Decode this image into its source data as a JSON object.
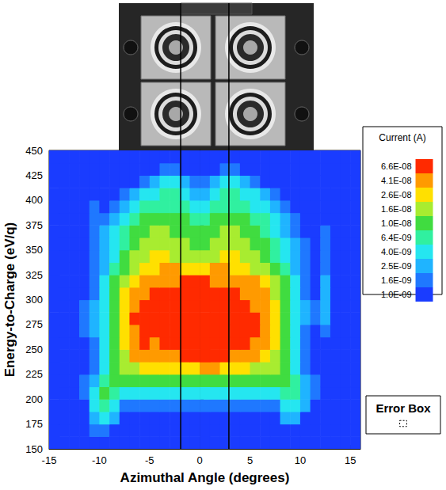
{
  "chart_data": {
    "type": "heatmap",
    "xlabel": "Azimuthal Angle (degrees)",
    "ylabel": "Energy-to-Charge (eV/q)",
    "xlim": [
      -15,
      16
    ],
    "xticks": [
      -15,
      -10,
      -5,
      0,
      5,
      10,
      15
    ],
    "ylim": [
      150,
      450
    ],
    "yticks": [
      150,
      175,
      200,
      225,
      250,
      275,
      300,
      325,
      350,
      375,
      400,
      425,
      450
    ],
    "grid": false,
    "x_bins": [
      -15,
      -14,
      -13,
      -12,
      -11,
      -10,
      -9,
      -8,
      -7,
      -6,
      -5,
      -4,
      -3,
      -2,
      -1,
      0,
      1,
      2,
      3,
      4,
      5,
      6,
      7,
      8,
      9,
      10,
      11,
      12,
      13,
      14,
      15,
      16
    ],
    "y_bins": [
      150,
      162.5,
      175,
      187.5,
      200,
      212.5,
      225,
      237.5,
      250,
      262.5,
      275,
      287.5,
      300,
      312.5,
      325,
      337.5,
      350,
      362.5,
      375,
      387.5,
      400,
      412.5,
      425,
      437.5,
      450
    ],
    "cells": [
      [
        1.2e-09,
        1.2e-09,
        1.2e-09,
        1.2e-09,
        1.2e-09,
        1.2e-09,
        1.2e-09,
        1.2e-09,
        1.2e-09,
        1.2e-09,
        1.2e-09,
        1.2e-09,
        1.2e-09,
        1.2e-09,
        1.2e-09,
        1.2e-09,
        1.2e-09,
        1.2e-09,
        1.2e-09,
        1.2e-09,
        1.2e-09,
        1.2e-09,
        1.2e-09,
        1.2e-09,
        1.2e-09,
        1.2e-09,
        1.2e-09,
        1.2e-09,
        1.2e-09,
        1.2e-09,
        1.2e-09
      ],
      [
        1.2e-09,
        1.2e-09,
        1.2e-09,
        1.2e-09,
        2e-09,
        2e-09,
        1.2e-09,
        1.2e-09,
        1.2e-09,
        1.2e-09,
        1.2e-09,
        1.2e-09,
        1.2e-09,
        1.2e-09,
        1.2e-09,
        1.2e-09,
        1.2e-09,
        1.2e-09,
        1.2e-09,
        1.2e-09,
        1.2e-09,
        1.2e-09,
        1.2e-09,
        1.2e-09,
        1.2e-09,
        1.2e-09,
        1.2e-09,
        1.2e-09,
        1.2e-09,
        1.2e-09,
        1.2e-09
      ],
      [
        1.2e-09,
        1.2e-09,
        1.2e-09,
        1.2e-09,
        3e-09,
        5e-09,
        3e-09,
        1.2e-09,
        1.2e-09,
        1.2e-09,
        1.2e-09,
        1.2e-09,
        1.2e-09,
        1.2e-09,
        1.2e-09,
        1.2e-09,
        1.2e-09,
        1.2e-09,
        1.2e-09,
        1.2e-09,
        1.2e-09,
        1.2e-09,
        1.2e-09,
        3e-09,
        3e-09,
        1.2e-09,
        1.2e-09,
        1.2e-09,
        1.2e-09,
        1.2e-09,
        1.2e-09
      ],
      [
        1.2e-09,
        1.2e-09,
        1.2e-09,
        1.2e-09,
        5e-09,
        8e-09,
        5e-09,
        2e-09,
        2e-09,
        2e-09,
        2e-09,
        2e-09,
        2e-09,
        2e-09,
        2e-09,
        2e-09,
        2e-09,
        2e-09,
        2e-09,
        2e-09,
        2e-09,
        2e-09,
        2e-09,
        5e-09,
        5e-09,
        3e-09,
        1.2e-09,
        1.2e-09,
        1.2e-09,
        1.2e-09,
        1.2e-09
      ],
      [
        1.2e-09,
        1.2e-09,
        1.2e-09,
        2e-09,
        5e-09,
        1.2e-08,
        8e-09,
        5e-09,
        5e-09,
        5e-09,
        5e-09,
        5e-09,
        5e-09,
        5e-09,
        5e-09,
        5e-09,
        5e-09,
        5e-09,
        5e-09,
        5e-09,
        5e-09,
        5e-09,
        5e-09,
        8e-09,
        8e-09,
        3e-09,
        2e-09,
        1.2e-09,
        1.2e-09,
        1.2e-09,
        1.2e-09
      ],
      [
        1.2e-09,
        1.2e-09,
        1.2e-09,
        2e-09,
        3e-09,
        8e-09,
        1.2e-08,
        1.2e-08,
        1.2e-08,
        1.2e-08,
        1.2e-08,
        1.2e-08,
        1.2e-08,
        1.2e-08,
        1.2e-08,
        1.2e-08,
        1.2e-08,
        1.2e-08,
        1.2e-08,
        1.2e-08,
        1.2e-08,
        1.2e-08,
        1.2e-08,
        1.2e-08,
        8e-09,
        3e-09,
        2e-09,
        1.2e-09,
        1.2e-09,
        1.2e-09,
        1.2e-09
      ],
      [
        1.2e-09,
        1.2e-09,
        1.2e-09,
        1.2e-09,
        2e-09,
        5e-09,
        1.2e-08,
        2e-08,
        2e-08,
        3e-08,
        3e-08,
        3e-08,
        3e-08,
        3e-08,
        3e-08,
        5e-08,
        5e-08,
        3e-08,
        3e-08,
        3e-08,
        2e-08,
        2e-08,
        2e-08,
        1.2e-08,
        5e-09,
        2e-09,
        1.2e-09,
        1.2e-09,
        1.2e-09,
        1.2e-09,
        1.2e-09
      ],
      [
        1.2e-09,
        1.2e-09,
        1.2e-09,
        1.2e-09,
        2e-09,
        5e-09,
        1.2e-08,
        2e-08,
        5e-08,
        5e-08,
        5e-08,
        5e-08,
        5e-08,
        8e-08,
        8e-08,
        8e-08,
        8e-08,
        8e-08,
        5e-08,
        5e-08,
        5e-08,
        3e-08,
        2e-08,
        1.2e-08,
        5e-09,
        2e-09,
        1.2e-09,
        1.2e-09,
        1.2e-09,
        1.2e-09,
        1.2e-09
      ],
      [
        1.2e-09,
        1.2e-09,
        1.2e-09,
        1.2e-09,
        2e-09,
        5e-09,
        1.2e-08,
        3e-08,
        5e-08,
        8e-08,
        5e-08,
        8e-08,
        8e-08,
        8e-08,
        8e-08,
        8e-08,
        8e-08,
        8e-08,
        8e-08,
        8e-08,
        5e-08,
        5e-08,
        3e-08,
        1.2e-08,
        5e-09,
        2e-09,
        1.2e-09,
        1.2e-09,
        1.2e-09,
        1.2e-09,
        1.2e-09
      ],
      [
        1.2e-09,
        1.2e-09,
        1.2e-09,
        2e-09,
        3e-09,
        5e-09,
        1.2e-08,
        3e-08,
        5e-08,
        8e-08,
        8e-08,
        8e-08,
        8e-08,
        8e-08,
        8e-08,
        8e-08,
        8e-08,
        8e-08,
        8e-08,
        8e-08,
        8e-08,
        5e-08,
        3e-08,
        1.2e-08,
        5e-09,
        2e-09,
        1.2e-09,
        2e-09,
        1.2e-09,
        1.2e-09,
        1.2e-09
      ],
      [
        1.2e-09,
        1.2e-09,
        1.2e-09,
        2e-09,
        3e-09,
        5e-09,
        1.2e-08,
        3e-08,
        8e-08,
        8e-08,
        8e-08,
        8e-08,
        8e-08,
        8e-08,
        8e-08,
        8e-08,
        8e-08,
        8e-08,
        8e-08,
        8e-08,
        8e-08,
        5e-08,
        3e-08,
        1.2e-08,
        5e-09,
        3e-09,
        2e-09,
        3e-09,
        1.2e-09,
        1.2e-09,
        1.2e-09
      ],
      [
        1.2e-09,
        1.2e-09,
        1.2e-09,
        2e-09,
        3e-09,
        5e-09,
        1.2e-08,
        3e-08,
        5e-08,
        8e-08,
        8e-08,
        8e-08,
        8e-08,
        8e-08,
        8e-08,
        8e-08,
        8e-08,
        8e-08,
        8e-08,
        8e-08,
        5e-08,
        5e-08,
        3e-08,
        1.2e-08,
        5e-09,
        3e-09,
        2e-09,
        3e-09,
        1.2e-09,
        1.2e-09,
        1.2e-09
      ],
      [
        1.2e-09,
        1.2e-09,
        1.2e-09,
        1.2e-09,
        2e-09,
        5e-09,
        1.2e-08,
        3e-08,
        5e-08,
        5e-08,
        8e-08,
        8e-08,
        8e-08,
        8e-08,
        8e-08,
        8e-08,
        8e-08,
        8e-08,
        8e-08,
        5e-08,
        5e-08,
        5e-08,
        2e-08,
        1.2e-08,
        5e-09,
        2e-09,
        1.2e-09,
        3e-09,
        1.2e-09,
        1.2e-09,
        1.2e-09
      ],
      [
        1.2e-09,
        1.2e-09,
        1.2e-09,
        1.2e-09,
        2e-09,
        5e-09,
        1.2e-08,
        2e-08,
        3e-08,
        5e-08,
        5e-08,
        5e-08,
        5e-08,
        8e-08,
        8e-08,
        8e-08,
        5e-08,
        5e-08,
        5e-08,
        5e-08,
        5e-08,
        3e-08,
        2e-08,
        1.2e-08,
        5e-09,
        2e-09,
        1.2e-09,
        3e-09,
        1.2e-09,
        1.2e-09,
        1.2e-09
      ],
      [
        1.2e-09,
        1.2e-09,
        1.2e-09,
        1.2e-09,
        2e-09,
        3e-09,
        8e-09,
        1.2e-08,
        2e-08,
        3e-08,
        3e-08,
        5e-08,
        5e-08,
        3e-08,
        3e-08,
        3e-08,
        5e-08,
        5e-08,
        3e-08,
        3e-08,
        2e-08,
        2e-08,
        1.2e-08,
        8e-09,
        3e-09,
        2e-09,
        1.2e-09,
        2e-09,
        1.2e-09,
        1.2e-09,
        1.2e-09
      ],
      [
        1.2e-09,
        1.2e-09,
        1.2e-09,
        1.2e-09,
        2e-09,
        3e-09,
        5e-09,
        1.2e-08,
        2e-08,
        2e-08,
        3e-08,
        3e-08,
        2e-08,
        2e-08,
        2e-08,
        2e-08,
        2e-08,
        3e-08,
        3e-08,
        2e-08,
        2e-08,
        1.2e-08,
        8e-09,
        5e-09,
        3e-09,
        2e-09,
        1.2e-09,
        2e-09,
        1.2e-09,
        1.2e-09,
        1.2e-09
      ],
      [
        1.2e-09,
        1.2e-09,
        1.2e-09,
        1.2e-09,
        2e-09,
        3e-09,
        5e-09,
        8e-09,
        1.2e-08,
        2e-08,
        2e-08,
        2e-08,
        2e-08,
        2e-08,
        1.2e-08,
        1.2e-08,
        2e-08,
        2e-08,
        2e-08,
        2e-08,
        1.2e-08,
        1.2e-08,
        8e-09,
        5e-09,
        3e-09,
        2e-09,
        1.2e-09,
        2e-09,
        1.2e-09,
        1.2e-09,
        1.2e-09
      ],
      [
        1.2e-09,
        1.2e-09,
        1.2e-09,
        1.2e-09,
        2e-09,
        3e-09,
        5e-09,
        8e-09,
        1.2e-08,
        1.2e-08,
        2e-08,
        2e-08,
        1.2e-08,
        1.2e-08,
        1.2e-08,
        1.2e-08,
        1.2e-08,
        2e-08,
        2e-08,
        1.2e-08,
        1.2e-08,
        8e-09,
        5e-09,
        3e-09,
        2e-09,
        1.2e-09,
        1.2e-09,
        2e-09,
        1.2e-09,
        1.2e-09,
        1.2e-09
      ],
      [
        1.2e-09,
        1.2e-09,
        1.2e-09,
        1.2e-09,
        2e-09,
        2e-09,
        3e-09,
        5e-09,
        8e-09,
        1.2e-08,
        1.2e-08,
        1.2e-08,
        1.2e-08,
        1.2e-08,
        8e-09,
        8e-09,
        1.2e-08,
        1.2e-08,
        1.2e-08,
        1.2e-08,
        8e-09,
        8e-09,
        5e-09,
        3e-09,
        2e-09,
        1.2e-09,
        1.2e-09,
        1.2e-09,
        1.2e-09,
        1.2e-09,
        1.2e-09
      ],
      [
        1.2e-09,
        1.2e-09,
        1.2e-09,
        1.2e-09,
        2e-09,
        1.2e-09,
        2e-09,
        3e-09,
        5e-09,
        8e-09,
        8e-09,
        8e-09,
        8e-09,
        8e-09,
        5e-09,
        5e-09,
        8e-09,
        8e-09,
        8e-09,
        8e-09,
        5e-09,
        5e-09,
        3e-09,
        2e-09,
        1.2e-09,
        1.2e-09,
        1.2e-09,
        1.2e-09,
        1.2e-09,
        1.2e-09,
        1.2e-09
      ],
      [
        1.2e-09,
        1.2e-09,
        1.2e-09,
        1.2e-09,
        1.2e-09,
        1.2e-09,
        1.2e-09,
        2e-09,
        3e-09,
        5e-09,
        5e-09,
        8e-09,
        8e-09,
        5e-09,
        3e-09,
        3e-09,
        5e-09,
        8e-09,
        8e-09,
        5e-09,
        5e-09,
        3e-09,
        2e-09,
        1.2e-09,
        1.2e-09,
        1.2e-09,
        1.2e-09,
        1.2e-09,
        1.2e-09,
        1.2e-09,
        1.2e-09
      ],
      [
        1.2e-09,
        1.2e-09,
        1.2e-09,
        1.2e-09,
        1.2e-09,
        1.2e-09,
        1.2e-09,
        1.2e-09,
        1.2e-09,
        2e-09,
        3e-09,
        5e-09,
        5e-09,
        3e-09,
        2e-09,
        2e-09,
        3e-09,
        5e-09,
        5e-09,
        3e-09,
        2e-09,
        1.2e-09,
        1.2e-09,
        1.2e-09,
        1.2e-09,
        1.2e-09,
        1.2e-09,
        1.2e-09,
        1.2e-09,
        1.2e-09,
        1.2e-09
      ],
      [
        1.2e-09,
        1.2e-09,
        1.2e-09,
        1.2e-09,
        1.2e-09,
        1.2e-09,
        1.2e-09,
        1.2e-09,
        1.2e-09,
        1.2e-09,
        1.2e-09,
        2e-09,
        2e-09,
        1.2e-09,
        1.2e-09,
        1.2e-09,
        1.2e-09,
        2e-09,
        2e-09,
        1.2e-09,
        1.2e-09,
        1.2e-09,
        1.2e-09,
        1.2e-09,
        1.2e-09,
        1.2e-09,
        1.2e-09,
        1.2e-09,
        1.2e-09,
        1.2e-09,
        1.2e-09
      ],
      [
        1.2e-09,
        1.2e-09,
        1.2e-09,
        1.2e-09,
        1.2e-09,
        1.2e-09,
        1.2e-09,
        1.2e-09,
        1.2e-09,
        1.2e-09,
        1.2e-09,
        1.2e-09,
        1.2e-09,
        1.2e-09,
        1.2e-09,
        1.2e-09,
        1.2e-09,
        1.2e-09,
        1.2e-09,
        1.2e-09,
        1.2e-09,
        1.2e-09,
        1.2e-09,
        1.2e-09,
        1.2e-09,
        1.2e-09,
        1.2e-09,
        1.2e-09,
        1.2e-09,
        1.2e-09,
        1.2e-09
      ]
    ],
    "colorbar": {
      "title": "Current (A)",
      "range": [
        1e-09,
        1e-07
      ],
      "ticks": [
        {
          "value": 1e-09,
          "label": "1.0E-09"
        },
        {
          "value": 1.6e-09,
          "label": "1.6E-09"
        },
        {
          "value": 2.5e-09,
          "label": "2.5E-09"
        },
        {
          "value": 4e-09,
          "label": "4.0E-09"
        },
        {
          "value": 6.4e-09,
          "label": "6.4E-09"
        },
        {
          "value": 1e-08,
          "label": "1.0E-08"
        },
        {
          "value": 1.6e-08,
          "label": "1.6E-08"
        },
        {
          "value": 2.6e-08,
          "label": "2.6E-08"
        },
        {
          "value": 4.1e-08,
          "label": "4.1E-08"
        },
        {
          "value": 6.6e-08,
          "label": "6.6E-08"
        }
      ],
      "colors": [
        "#1a3cff",
        "#1f78ff",
        "#1fb4ff",
        "#25e6f0",
        "#30f0a0",
        "#40dc40",
        "#a8ec30",
        "#ffe000",
        "#ff9a00",
        "#ff2a00"
      ]
    },
    "vlines": [
      -1.9,
      2.9
    ],
    "error_box": {
      "label": "Error Box",
      "width": 0.7,
      "height": 6
    }
  }
}
